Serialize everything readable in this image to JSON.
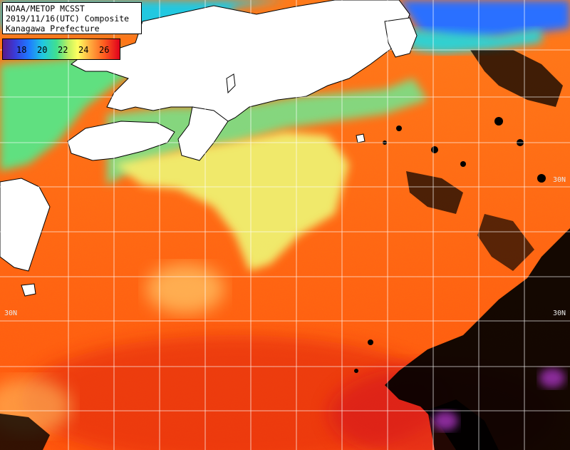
{
  "title": {
    "line1": "NOAA/METOP MCSST",
    "line2": "2019/11/16(UTC) Composite",
    "line3": "Kanagawa Prefecture"
  },
  "legend": {
    "ticks": [
      "18",
      "20",
      "22",
      "24",
      "26"
    ],
    "colors": [
      "#5a1a8a",
      "#3a3ad8",
      "#1e78ff",
      "#20c8e0",
      "#40e090",
      "#ffff60",
      "#ffb040",
      "#ff6020",
      "#e0001c"
    ]
  },
  "map": {
    "land_color": "#ffffff",
    "grid_color": "#ffffff",
    "cloud_color": "#000000",
    "lat_labels": [
      {
        "text": "30N",
        "side": "left"
      },
      {
        "text": "30N",
        "side": "right"
      },
      {
        "text": "30N",
        "side": "right-upper"
      }
    ]
  }
}
